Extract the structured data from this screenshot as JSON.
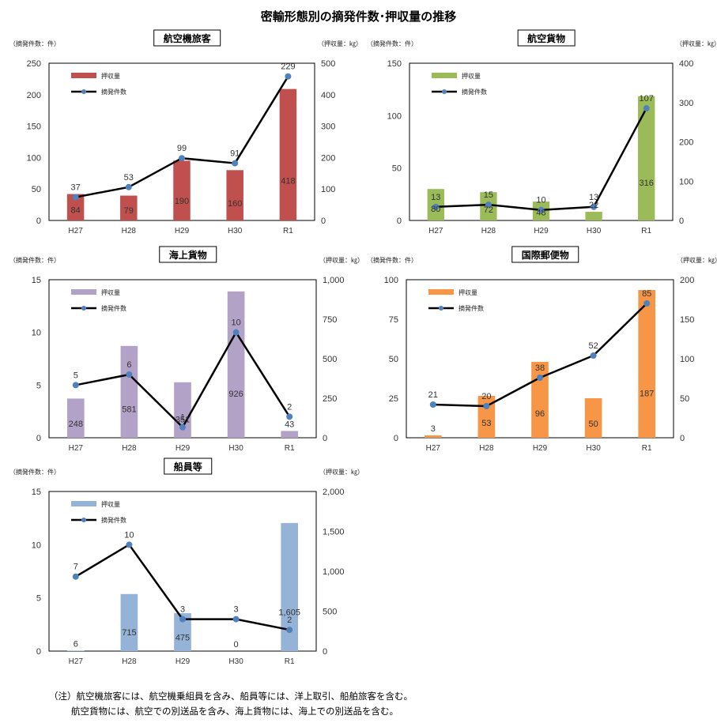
{
  "page_title": "密輸形態別の摘発件数･押収量の推移",
  "chart_data": [
    {
      "type": "bar",
      "title": "航空機旅客",
      "categories": [
        "H27",
        "H28",
        "H29",
        "H30",
        "R1"
      ],
      "series": [
        {
          "name": "押収量",
          "type": "bar",
          "axis": "right",
          "values": [
            84,
            79,
            190,
            160,
            418
          ],
          "color": "#c0504d"
        },
        {
          "name": "摘発件数",
          "type": "line",
          "axis": "left",
          "values": [
            37,
            53,
            99,
            91,
            229
          ],
          "color": "#000000"
        }
      ],
      "left_axis": {
        "label": "（摘発件数：件）",
        "min": 0,
        "max": 250,
        "ticks": [
          "0",
          "50",
          "100",
          "150",
          "200",
          "250"
        ]
      },
      "right_axis": {
        "label": "（押収量：㎏）",
        "min": 0,
        "max": 500,
        "ticks": [
          "0",
          "100",
          "200",
          "300",
          "400",
          "500"
        ]
      },
      "line_labels": [
        "37",
        "53",
        "99",
        "91",
        "229"
      ],
      "bar_labels": [
        "84",
        "79",
        "190",
        "160",
        "418"
      ],
      "legend": [
        "押収量",
        "摘発件数"
      ]
    },
    {
      "type": "bar",
      "title": "航空貨物",
      "categories": [
        "H27",
        "H28",
        "H29",
        "H30",
        "R1"
      ],
      "series": [
        {
          "name": "押収量",
          "type": "bar",
          "axis": "right",
          "values": [
            80,
            72,
            48,
            22,
            316
          ],
          "color": "#9bbb59"
        },
        {
          "name": "摘発件数",
          "type": "line",
          "axis": "left",
          "values": [
            13,
            15,
            10,
            13,
            107
          ],
          "color": "#000000"
        }
      ],
      "left_axis": {
        "label": "（摘発件数：件）",
        "min": 0,
        "max": 150,
        "ticks": [
          "0",
          "50",
          "100",
          "150"
        ]
      },
      "right_axis": {
        "label": "（押収量：㎏）",
        "min": 0,
        "max": 400,
        "ticks": [
          "0",
          "100",
          "200",
          "300",
          "400"
        ]
      },
      "line_labels": [
        "13",
        "15",
        "10",
        "13",
        "107"
      ],
      "bar_labels": [
        "80",
        "72",
        "48",
        "22",
        "316"
      ],
      "legend": [
        "押収量",
        "摘発件数"
      ]
    },
    {
      "type": "bar",
      "title": "海上貨物",
      "categories": [
        "H27",
        "H28",
        "H29",
        "H30",
        "R1"
      ],
      "series": [
        {
          "name": "押収量",
          "type": "bar",
          "axis": "right",
          "values": [
            248,
            581,
            351,
            926,
            43
          ],
          "color": "#b3a2c7"
        },
        {
          "name": "摘発件数",
          "type": "line",
          "axis": "left",
          "values": [
            5,
            6,
            1,
            10,
            2
          ],
          "color": "#000000"
        }
      ],
      "left_axis": {
        "label": "（摘発件数：件）",
        "min": 0,
        "max": 15,
        "ticks": [
          "0",
          "5",
          "10",
          "15"
        ]
      },
      "right_axis": {
        "label": "（押収量：㎏）",
        "min": 0,
        "max": 1000,
        "ticks": [
          "0",
          "250",
          "500",
          "750",
          "1,000"
        ]
      },
      "line_labels": [
        "5",
        "6",
        "1",
        "10",
        "2"
      ],
      "bar_labels": [
        "248",
        "581",
        "351",
        "926",
        "43"
      ],
      "legend": [
        "押収量",
        "摘発件数"
      ]
    },
    {
      "type": "bar",
      "title": "国際郵便物",
      "categories": [
        "H27",
        "H28",
        "H29",
        "H30",
        "R1"
      ],
      "series": [
        {
          "name": "押収量",
          "type": "bar",
          "axis": "right",
          "values": [
            3,
            53,
            96,
            50,
            187
          ],
          "color": "#f79646"
        },
        {
          "name": "摘発件数",
          "type": "line",
          "axis": "left",
          "values": [
            21,
            20,
            38,
            52,
            85
          ],
          "color": "#000000"
        }
      ],
      "left_axis": {
        "label": "（摘発件数：件）",
        "min": 0,
        "max": 100,
        "ticks": [
          "0",
          "25",
          "50",
          "75",
          "100"
        ]
      },
      "right_axis": {
        "label": "（押収量：㎏）",
        "min": 0,
        "max": 200,
        "ticks": [
          "0",
          "50",
          "100",
          "150",
          "200"
        ]
      },
      "line_labels": [
        "21",
        "20",
        "38",
        "52",
        "85"
      ],
      "bar_labels": [
        "3",
        "53",
        "96",
        "50",
        "187"
      ],
      "legend": [
        "押収量",
        "摘発件数"
      ]
    },
    {
      "type": "bar",
      "title": "船員等",
      "categories": [
        "H27",
        "H28",
        "H29",
        "H30",
        "R1"
      ],
      "series": [
        {
          "name": "押収量",
          "type": "bar",
          "axis": "right",
          "values": [
            6,
            715,
            475,
            0,
            1605
          ],
          "color": "#95b3d7"
        },
        {
          "name": "摘発件数",
          "type": "line",
          "axis": "left",
          "values": [
            7,
            10,
            3,
            3,
            2
          ],
          "color": "#000000"
        }
      ],
      "left_axis": {
        "label": "（摘発件数：件）",
        "min": 0,
        "max": 15,
        "ticks": [
          "0",
          "5",
          "10",
          "15"
        ]
      },
      "right_axis": {
        "label": "（押収量：㎏）",
        "min": 0,
        "max": 2000,
        "ticks": [
          "0",
          "500",
          "1,000",
          "1,500",
          "2,000"
        ]
      },
      "line_labels": [
        "7",
        "10",
        "3",
        "3",
        "2"
      ],
      "bar_labels": [
        "6",
        "715",
        "475",
        "0",
        "1,605"
      ],
      "legend": [
        "押収量",
        "摘発件数"
      ]
    }
  ],
  "notes": [
    "（注）航空機旅客には、航空機乗組員を含み、船員等には、洋上取引、船舶旅客を含む。",
    "航空貨物には、航空での別送品を含み、海上貨物には、海上での別送品を含む。"
  ]
}
